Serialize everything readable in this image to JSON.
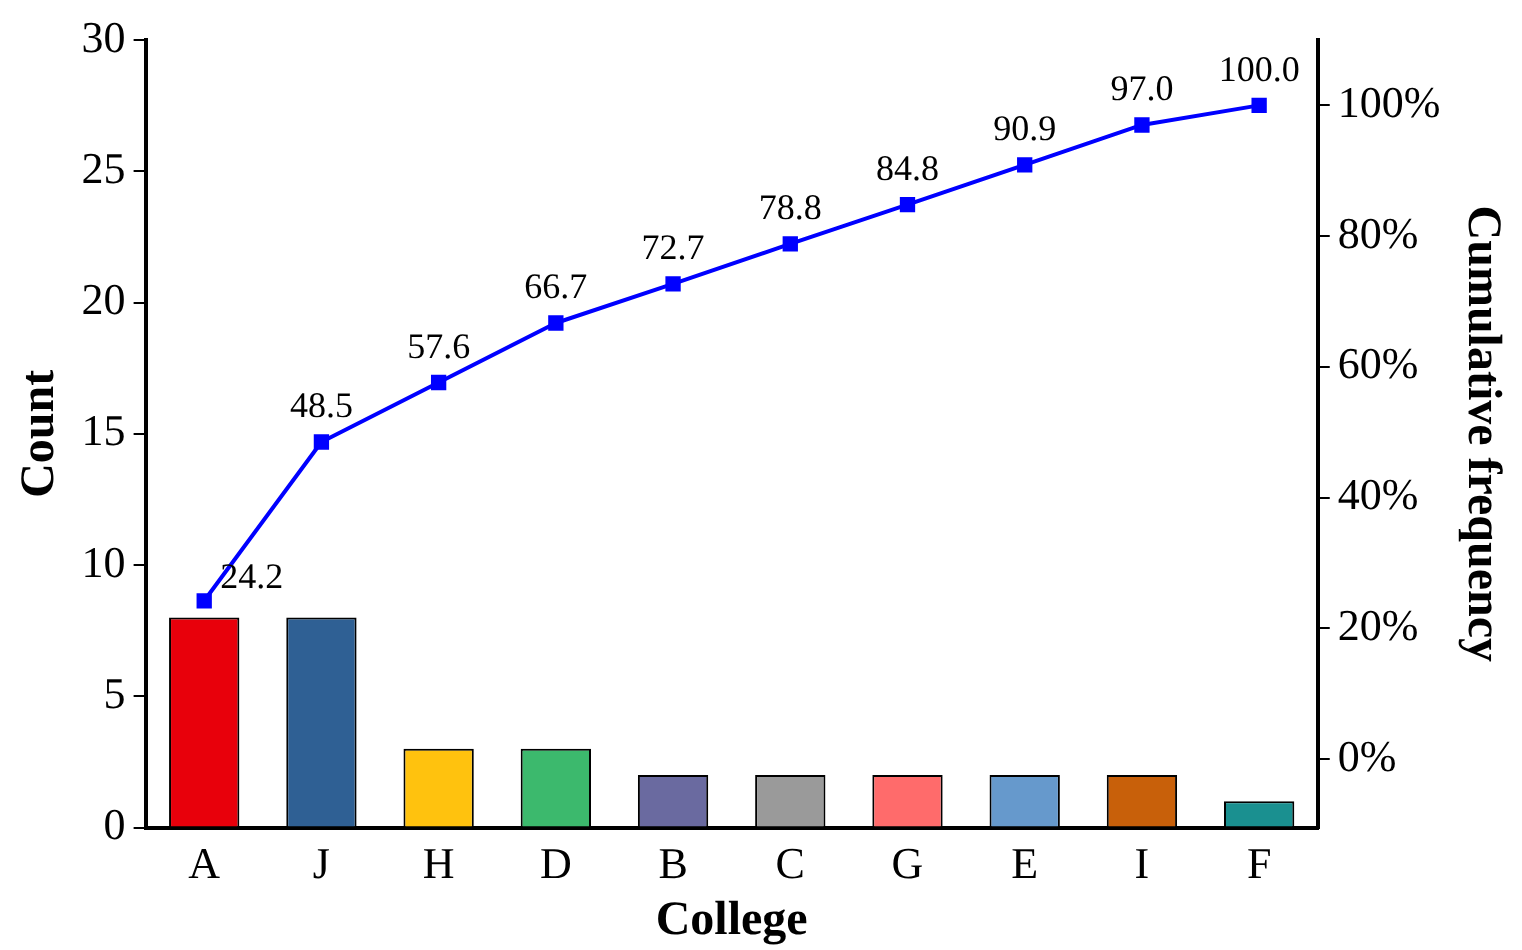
{
  "chart_data": {
    "type": "bar",
    "xlabel": "College",
    "ylabel": "Count",
    "y2label": "Cumulative frequency",
    "categories": [
      "A",
      "J",
      "H",
      "D",
      "B",
      "C",
      "G",
      "E",
      "I",
      "F"
    ],
    "series": [
      {
        "colors": [
          "#e8000b",
          "#2f6094",
          "#ffc20e",
          "#3cb96d",
          "#6a6aa0",
          "#9a9a9a",
          "#ff6b6b",
          "#6699cc",
          "#c8600a",
          "#1a9090"
        ],
        "values": [
          8,
          8,
          3,
          3,
          2,
          2,
          2,
          2,
          2,
          1
        ]
      },
      {
        "type": "line",
        "axis": "y2",
        "color": "#0000ff",
        "marker": "square",
        "values": [
          24.2,
          48.5,
          57.6,
          66.7,
          72.7,
          78.8,
          84.8,
          90.9,
          97.0,
          100.0
        ],
        "value_labels": [
          "24.2",
          "48.5",
          "57.6",
          "66.7",
          "72.7",
          "78.8",
          "84.8",
          "90.9",
          "97.0",
          "100.0"
        ]
      }
    ],
    "ylim": [
      0,
      30
    ],
    "yticks": [
      0,
      5,
      10,
      15,
      20,
      25,
      30
    ],
    "y2lim": [
      -10.5,
      110
    ],
    "y2ticks": [
      {
        "value": 0,
        "label": "0%"
      },
      {
        "value": 20,
        "label": "20%"
      },
      {
        "value": 40,
        "label": "40%"
      },
      {
        "value": 60,
        "label": "60%"
      },
      {
        "value": 80,
        "label": "80%"
      },
      {
        "value": 100,
        "label": "100%"
      }
    ],
    "grid": false,
    "legend": false
  }
}
